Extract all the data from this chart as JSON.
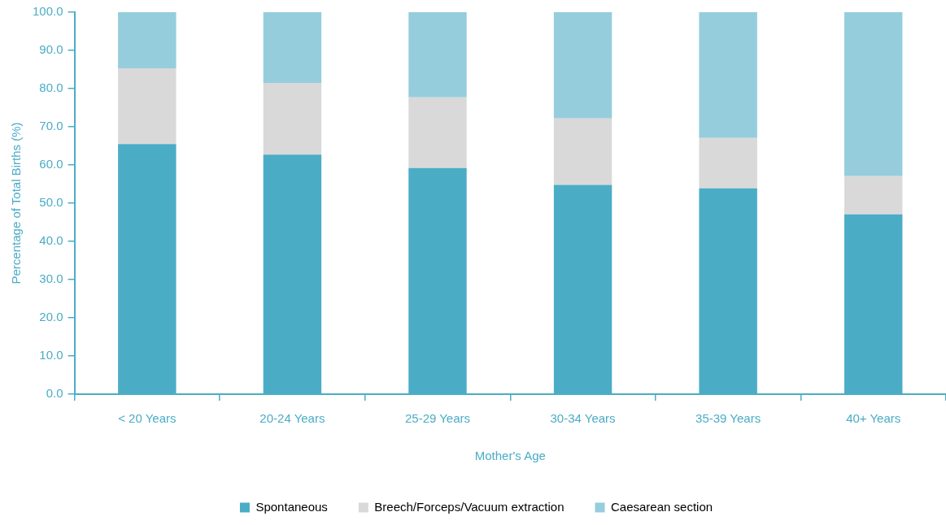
{
  "chart_data": {
    "type": "bar",
    "stacked": true,
    "xlabel": "Mother's Age",
    "ylabel": "Percentage of Total Births (%)",
    "categories": [
      "< 20 Years",
      "20-24 Years",
      "25-29 Years",
      "30-34 Years",
      "35-39 Years",
      "40+ Years"
    ],
    "series": [
      {
        "name": "Spontaneous",
        "color": "#4bacc6",
        "values": [
          65.5,
          62.7,
          59.2,
          54.8,
          53.9,
          47.1
        ]
      },
      {
        "name": "Breech/Forceps/Vacuum extraction",
        "color": "#d9d9d9",
        "values": [
          19.8,
          18.8,
          18.5,
          17.4,
          13.2,
          10.0
        ]
      },
      {
        "name": "Caesarean section",
        "color": "#95cddd",
        "values": [
          14.7,
          18.5,
          22.3,
          27.8,
          32.9,
          42.9
        ]
      }
    ],
    "ylim": [
      0,
      100
    ],
    "yticks": [
      {
        "value": 0,
        "label": "0.0"
      },
      {
        "value": 10,
        "label": "10.0"
      },
      {
        "value": 20,
        "label": "20.0"
      },
      {
        "value": 30,
        "label": "30.0"
      },
      {
        "value": 40,
        "label": "40.0"
      },
      {
        "value": 50,
        "label": "50.0"
      },
      {
        "value": 60,
        "label": "60.0"
      },
      {
        "value": 70,
        "label": "70.0"
      },
      {
        "value": 80,
        "label": "80.0"
      },
      {
        "value": 90,
        "label": "90.0"
      },
      {
        "value": 100,
        "label": "100.0"
      }
    ],
    "grid": false,
    "legend": "bottom"
  }
}
